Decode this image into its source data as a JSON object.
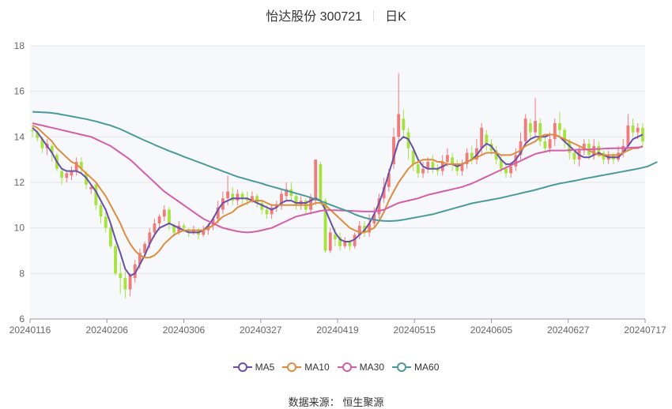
{
  "header": {
    "stock": "怡达股份 300721",
    "period": "日K"
  },
  "source": {
    "label": "数据来源：",
    "name": "恒生聚源"
  },
  "colors": {
    "up": "#f07b7b",
    "down": "#a6e33f",
    "MA5": "#6a4fa8",
    "MA10": "#de8d3f",
    "MA30": "#d45ea8",
    "MA60": "#4a9a9b",
    "grid": "#e6e6e6",
    "plot_bg": "#f7f8fc"
  },
  "chart_data": {
    "type": "candlestick",
    "title": "怡达股份 300721 日K",
    "ylim": [
      6,
      18
    ],
    "yticks": [
      6,
      8,
      10,
      12,
      14,
      16,
      18
    ],
    "x_tick_labels": [
      "20240116",
      "20240206",
      "20240306",
      "20240327",
      "20240419",
      "20240515",
      "20240605",
      "20240627",
      "20240717"
    ],
    "legend_position": "bottom",
    "grid": true,
    "candles": [
      [
        14.3,
        14.25,
        14.5,
        14.0
      ],
      [
        14.2,
        13.95,
        14.3,
        13.8
      ],
      [
        13.9,
        13.5,
        14.0,
        13.3
      ],
      [
        13.5,
        13.7,
        13.9,
        13.2
      ],
      [
        13.6,
        13.3,
        13.7,
        12.9
      ],
      [
        13.2,
        12.6,
        13.3,
        12.5
      ],
      [
        12.5,
        12.2,
        12.6,
        11.9
      ],
      [
        12.2,
        12.4,
        12.5,
        12.0
      ],
      [
        12.3,
        12.5,
        12.7,
        12.1
      ],
      [
        12.5,
        12.9,
        13.1,
        12.3
      ],
      [
        12.9,
        12.6,
        13.1,
        12.4
      ],
      [
        12.4,
        11.9,
        12.5,
        11.7
      ],
      [
        11.7,
        11.8,
        11.9,
        11.5
      ],
      [
        11.9,
        11.0,
        12.0,
        10.8
      ],
      [
        11.0,
        10.5,
        11.1,
        10.2
      ],
      [
        10.5,
        10.0,
        10.7,
        9.8
      ],
      [
        10.0,
        9.2,
        10.2,
        9.1
      ],
      [
        9.2,
        8.0,
        9.3,
        7.9
      ],
      [
        8.0,
        7.8,
        8.5,
        7.1
      ],
      [
        7.8,
        7.3,
        8.1,
        6.9
      ],
      [
        7.3,
        7.9,
        8.0,
        7.0
      ],
      [
        7.8,
        8.4,
        8.6,
        7.6
      ],
      [
        8.4,
        8.9,
        9.1,
        8.2
      ],
      [
        8.9,
        9.3,
        9.4,
        8.7
      ],
      [
        9.3,
        9.8,
        10.0,
        9.1
      ],
      [
        9.8,
        10.2,
        10.4,
        9.6
      ],
      [
        10.2,
        10.5,
        10.6,
        9.9
      ],
      [
        10.5,
        10.8,
        11.0,
        10.3
      ],
      [
        10.8,
        10.2,
        10.9,
        9.9
      ],
      [
        10.1,
        9.8,
        10.2,
        9.6
      ],
      [
        9.8,
        10.1,
        10.3,
        9.7
      ],
      [
        10.1,
        10.0,
        10.2,
        9.8
      ],
      [
        9.9,
        9.8,
        10.0,
        9.6
      ],
      [
        9.8,
        9.9,
        10.1,
        9.7
      ],
      [
        9.9,
        9.7,
        10.0,
        9.5
      ],
      [
        9.7,
        9.9,
        10.1,
        9.6
      ],
      [
        9.9,
        10.1,
        10.2,
        9.7
      ],
      [
        10.1,
        10.4,
        10.5,
        9.9
      ],
      [
        10.4,
        10.9,
        11.2,
        10.2
      ],
      [
        10.8,
        11.3,
        11.6,
        10.6
      ],
      [
        11.3,
        11.6,
        12.3,
        11.0
      ],
      [
        11.5,
        11.2,
        11.8,
        11.0
      ],
      [
        11.2,
        11.5,
        11.7,
        11.0
      ],
      [
        11.5,
        11.3,
        11.6,
        11.0
      ],
      [
        11.3,
        11.2,
        11.6,
        11.0
      ],
      [
        11.2,
        11.4,
        11.6,
        11.1
      ],
      [
        11.4,
        11.1,
        11.5,
        10.9
      ],
      [
        11.1,
        10.8,
        11.2,
        10.6
      ],
      [
        10.8,
        10.6,
        11.0,
        10.4
      ],
      [
        10.6,
        10.9,
        11.0,
        10.4
      ],
      [
        10.9,
        11.0,
        11.2,
        10.7
      ],
      [
        11.0,
        11.5,
        11.7,
        10.8
      ],
      [
        11.4,
        11.7,
        12.0,
        11.2
      ],
      [
        11.7,
        11.4,
        12.0,
        11.2
      ],
      [
        11.4,
        11.0,
        11.5,
        10.8
      ],
      [
        11.0,
        11.2,
        11.4,
        10.8
      ],
      [
        11.2,
        10.8,
        11.3,
        10.6
      ],
      [
        10.8,
        11.3,
        11.5,
        10.6
      ],
      [
        11.2,
        13.0,
        13.0,
        11.0
      ],
      [
        12.8,
        11.2,
        12.9,
        11.0
      ],
      [
        11.2,
        9.0,
        11.3,
        8.9
      ],
      [
        9.0,
        9.8,
        10.0,
        8.9
      ],
      [
        9.7,
        9.5,
        10.0,
        9.2
      ],
      [
        9.6,
        9.2,
        9.8,
        9.0
      ],
      [
        9.2,
        9.4,
        9.6,
        9.1
      ],
      [
        9.4,
        9.2,
        9.5,
        9.0
      ],
      [
        9.2,
        9.7,
        9.8,
        9.1
      ],
      [
        9.7,
        10.1,
        10.3,
        9.5
      ],
      [
        10.1,
        9.8,
        10.3,
        9.6
      ],
      [
        9.8,
        10.2,
        10.6,
        9.6
      ],
      [
        10.2,
        10.6,
        10.9,
        10.0
      ],
      [
        10.6,
        11.3,
        11.5,
        10.4
      ],
      [
        11.3,
        11.8,
        12.2,
        11.1
      ],
      [
        11.8,
        12.4,
        12.6,
        11.6
      ],
      [
        12.8,
        14.0,
        14.4,
        12.6
      ],
      [
        14.0,
        15.0,
        16.8,
        13.8
      ],
      [
        14.8,
        14.3,
        15.2,
        14.0
      ],
      [
        14.2,
        13.5,
        14.4,
        13.0
      ],
      [
        13.4,
        12.8,
        13.6,
        12.5
      ],
      [
        12.8,
        12.4,
        13.0,
        12.2
      ],
      [
        12.4,
        12.6,
        12.9,
        12.2
      ],
      [
        12.6,
        12.9,
        13.1,
        12.4
      ],
      [
        12.9,
        12.6,
        13.2,
        12.4
      ],
      [
        12.6,
        12.5,
        12.8,
        12.3
      ],
      [
        12.5,
        12.9,
        13.2,
        12.3
      ],
      [
        12.9,
        13.2,
        13.5,
        12.7
      ],
      [
        13.1,
        12.8,
        13.3,
        12.5
      ],
      [
        12.8,
        12.5,
        13.0,
        12.3
      ],
      [
        12.5,
        12.8,
        13.0,
        12.3
      ],
      [
        12.8,
        13.3,
        13.5,
        12.6
      ],
      [
        13.3,
        13.0,
        13.6,
        12.8
      ],
      [
        13.0,
        13.5,
        13.9,
        12.8
      ],
      [
        13.5,
        14.4,
        14.6,
        13.2
      ],
      [
        14.1,
        13.7,
        14.3,
        13.4
      ],
      [
        13.7,
        13.4,
        13.9,
        13.2
      ],
      [
        13.4,
        13.0,
        13.6,
        12.8
      ],
      [
        13.0,
        12.6,
        13.2,
        12.4
      ],
      [
        12.6,
        12.4,
        12.8,
        12.2
      ],
      [
        12.4,
        12.7,
        12.9,
        12.2
      ],
      [
        12.7,
        13.2,
        13.5,
        12.5
      ],
      [
        13.2,
        13.8,
        14.2,
        13.0
      ],
      [
        13.8,
        14.8,
        15.0,
        13.6
      ],
      [
        14.6,
        14.2,
        14.8,
        13.9
      ],
      [
        14.2,
        14.7,
        15.7,
        14.0
      ],
      [
        14.6,
        13.8,
        14.8,
        13.6
      ],
      [
        13.8,
        13.5,
        14.0,
        13.3
      ],
      [
        13.5,
        13.9,
        14.2,
        13.3
      ],
      [
        13.9,
        14.6,
        14.8,
        13.6
      ],
      [
        14.6,
        14.3,
        15.1,
        14.0
      ],
      [
        14.3,
        13.8,
        14.4,
        13.5
      ],
      [
        13.8,
        13.3,
        13.9,
        13.0
      ],
      [
        13.3,
        13.0,
        13.4,
        12.8
      ],
      [
        13.0,
        13.4,
        13.6,
        12.7
      ],
      [
        13.4,
        13.7,
        13.9,
        13.2
      ],
      [
        13.7,
        13.2,
        13.9,
        13.0
      ],
      [
        13.2,
        13.6,
        13.9,
        13.0
      ],
      [
        13.6,
        13.3,
        13.8,
        13.1
      ],
      [
        13.3,
        13.0,
        13.4,
        12.8
      ],
      [
        13.0,
        13.2,
        13.4,
        12.8
      ],
      [
        13.2,
        13.0,
        13.3,
        12.8
      ],
      [
        13.0,
        13.3,
        13.6,
        12.9
      ],
      [
        13.3,
        13.6,
        13.9,
        13.1
      ],
      [
        13.6,
        14.5,
        15.0,
        13.4
      ],
      [
        14.5,
        14.2,
        14.8,
        14.0
      ],
      [
        14.2,
        14.4,
        14.6,
        13.9
      ],
      [
        14.4,
        13.8,
        14.6,
        13.6
      ]
    ],
    "series": [
      {
        "name": "MA5",
        "values": [
          14.4,
          14.2,
          13.9,
          13.6,
          13.3,
          12.9,
          12.6,
          12.5,
          12.5,
          12.5,
          12.4,
          12.2,
          11.9,
          11.6,
          11.2,
          10.8,
          10.2,
          9.5,
          8.9,
          8.2,
          7.9,
          8.0,
          8.4,
          8.8,
          9.3,
          9.7,
          10.0,
          10.1,
          10.2,
          10.1,
          10.0,
          9.9,
          9.8,
          9.8,
          9.8,
          9.9,
          10.1,
          10.4,
          10.8,
          11.1,
          11.2,
          11.3,
          11.3,
          11.3,
          11.3,
          11.2,
          11.1,
          11.0,
          10.9,
          10.8,
          10.9,
          11.1,
          11.2,
          11.2,
          11.1,
          11.1,
          11.1,
          11.2,
          11.3,
          11.2,
          10.8,
          10.3,
          9.8,
          9.5,
          9.4,
          9.4,
          9.5,
          9.7,
          9.9,
          10.2,
          10.6,
          11.1,
          11.7,
          12.4,
          13.1,
          13.8,
          14.0,
          13.9,
          13.5,
          13.0,
          12.7,
          12.6,
          12.6,
          12.6,
          12.7,
          12.8,
          12.8,
          12.7,
          12.8,
          12.9,
          13.0,
          13.2,
          13.5,
          13.7,
          13.6,
          13.3,
          13.0,
          12.8,
          12.8,
          13.0,
          13.3,
          13.7,
          13.9,
          14.0,
          14.0,
          14.0,
          14.1,
          14.1,
          14.0,
          13.8,
          13.6,
          13.4,
          13.2,
          13.1,
          13.1,
          13.2,
          13.3,
          13.2,
          13.1,
          13.1,
          13.1,
          13.3,
          13.6,
          13.9,
          14.0,
          14.1
        ]
      },
      {
        "name": "MA10",
        "values": [
          14.5,
          14.4,
          14.2,
          14.0,
          13.8,
          13.5,
          13.3,
          13.1,
          12.9,
          12.8,
          12.6,
          12.4,
          12.2,
          12.0,
          11.7,
          11.4,
          11.0,
          10.6,
          10.2,
          9.7,
          9.3,
          9.0,
          8.8,
          8.7,
          8.7,
          8.8,
          9.0,
          9.3,
          9.5,
          9.7,
          9.8,
          9.9,
          9.9,
          9.9,
          9.9,
          9.9,
          10.0,
          10.1,
          10.3,
          10.5,
          10.6,
          10.7,
          10.9,
          11.0,
          11.1,
          11.2,
          11.2,
          11.2,
          11.1,
          11.0,
          11.0,
          11.0,
          11.0,
          11.0,
          11.0,
          11.0,
          11.0,
          11.0,
          11.1,
          11.1,
          11.0,
          10.8,
          10.6,
          10.4,
          10.2,
          10.0,
          9.9,
          9.8,
          9.8,
          9.9,
          10.0,
          10.3,
          10.7,
          11.2,
          11.6,
          12.0,
          12.3,
          12.6,
          12.8,
          12.9,
          13.0,
          13.0,
          13.0,
          12.9,
          12.9,
          12.8,
          12.8,
          12.8,
          12.8,
          12.9,
          13.0,
          13.1,
          13.2,
          13.3,
          13.3,
          13.3,
          13.2,
          13.2,
          13.2,
          13.3,
          13.4,
          13.6,
          13.7,
          13.8,
          14.0,
          14.1,
          14.1,
          14.1,
          14.0,
          13.9,
          13.8,
          13.7,
          13.6,
          13.5,
          13.4,
          13.3,
          13.2,
          13.2,
          13.2,
          13.2,
          13.2,
          13.3,
          13.4,
          13.5,
          13.5,
          13.6
        ]
      },
      {
        "name": "MA30",
        "values": [
          14.6,
          14.55,
          14.5,
          14.45,
          14.4,
          14.35,
          14.3,
          14.25,
          14.2,
          14.15,
          14.1,
          14.05,
          14.0,
          13.9,
          13.8,
          13.7,
          13.6,
          13.45,
          13.3,
          13.15,
          13.0,
          12.8,
          12.6,
          12.4,
          12.2,
          12.0,
          11.8,
          11.6,
          11.45,
          11.3,
          11.15,
          11.0,
          10.85,
          10.7,
          10.55,
          10.4,
          10.3,
          10.2,
          10.1,
          10.0,
          9.95,
          9.9,
          9.85,
          9.82,
          9.8,
          9.82,
          9.85,
          9.9,
          9.95,
          10.0,
          10.1,
          10.2,
          10.3,
          10.4,
          10.5,
          10.55,
          10.6,
          10.65,
          10.7,
          10.75,
          10.78,
          10.78,
          10.78,
          10.77,
          10.76,
          10.75,
          10.74,
          10.73,
          10.72,
          10.72,
          10.72,
          10.75,
          10.8,
          10.9,
          11.0,
          11.1,
          11.15,
          11.2,
          11.25,
          11.3,
          11.38,
          11.45,
          11.5,
          11.55,
          11.6,
          11.65,
          11.7,
          11.75,
          11.8,
          11.88,
          11.95,
          12.05,
          12.15,
          12.25,
          12.35,
          12.45,
          12.55,
          12.65,
          12.75,
          12.85,
          12.95,
          13.05,
          13.15,
          13.25,
          13.3,
          13.35,
          13.4,
          13.4,
          13.4,
          13.4,
          13.42,
          13.43,
          13.44,
          13.45,
          13.45,
          13.46,
          13.47,
          13.48,
          13.49,
          13.5,
          13.5,
          13.51,
          13.52,
          13.53,
          13.54,
          13.56
        ]
      },
      {
        "name": "MA60",
        "values": [
          15.1,
          15.09,
          15.08,
          15.07,
          15.05,
          15.02,
          14.98,
          14.94,
          14.9,
          14.86,
          14.82,
          14.78,
          14.73,
          14.68,
          14.62,
          14.56,
          14.5,
          14.42,
          14.34,
          14.24,
          14.14,
          14.04,
          13.94,
          13.84,
          13.75,
          13.65,
          13.56,
          13.47,
          13.38,
          13.3,
          13.22,
          13.13,
          13.05,
          12.97,
          12.89,
          12.81,
          12.73,
          12.65,
          12.57,
          12.49,
          12.41,
          12.33,
          12.25,
          12.19,
          12.13,
          12.07,
          12.01,
          11.95,
          11.88,
          11.82,
          11.76,
          11.7,
          11.64,
          11.58,
          11.52,
          11.46,
          11.4,
          11.33,
          11.26,
          11.18,
          11.1,
          11.02,
          10.94,
          10.86,
          10.78,
          10.7,
          10.6,
          10.52,
          10.45,
          10.4,
          10.36,
          10.33,
          10.31,
          10.3,
          10.31,
          10.33,
          10.36,
          10.4,
          10.44,
          10.48,
          10.52,
          10.56,
          10.6,
          10.66,
          10.72,
          10.78,
          10.84,
          10.9,
          10.96,
          11.02,
          11.08,
          11.12,
          11.16,
          11.2,
          11.24,
          11.28,
          11.32,
          11.37,
          11.42,
          11.47,
          11.52,
          11.57,
          11.62,
          11.67,
          11.73,
          11.79,
          11.85,
          11.9,
          11.95,
          11.99,
          12.03,
          12.07,
          12.11,
          12.16,
          12.2,
          12.24,
          12.28,
          12.32,
          12.36,
          12.4,
          12.44,
          12.48,
          12.52,
          12.56,
          12.6,
          12.65,
          12.7,
          12.8,
          12.9
        ]
      }
    ]
  }
}
